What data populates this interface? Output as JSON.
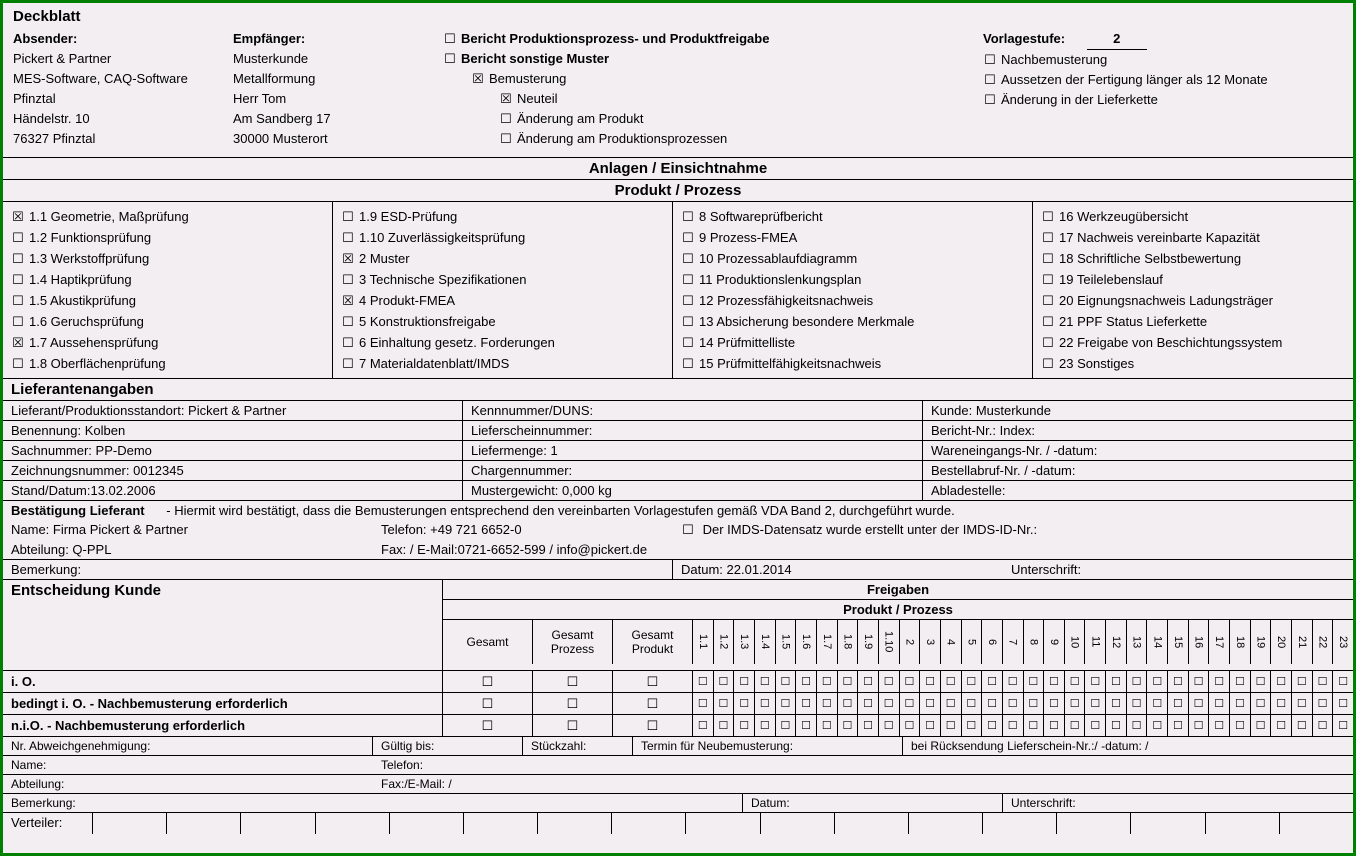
{
  "title": "Deckblatt",
  "absender_label": "Absender:",
  "absender": [
    "Pickert & Partner",
    "MES-Software, CAQ-Software",
    "Pfinztal",
    "Händelstr. 10",
    "76327 Pfinztal"
  ],
  "empfaenger_label": "Empfänger:",
  "empfaenger": [
    "Musterkunde",
    "Metallformung",
    "Herr Tom",
    "Am Sandberg 17",
    "30000 Musterort"
  ],
  "mid": [
    {
      "c": "☐",
      "t": "Bericht Produktionsprozess- und Produktfreigabe",
      "b": true,
      "ind": 0
    },
    {
      "c": "☐",
      "t": "Bericht sonstige Muster",
      "b": true,
      "ind": 0
    },
    {
      "c": "☒",
      "t": "Bemusterung",
      "b": false,
      "ind": 1
    },
    {
      "c": "☒",
      "t": "Neuteil",
      "b": false,
      "ind": 2
    },
    {
      "c": "☐",
      "t": "Änderung am Produkt",
      "b": false,
      "ind": 2
    },
    {
      "c": "☐",
      "t": "Änderung am Produktionsprozessen",
      "b": false,
      "ind": 2
    }
  ],
  "vorlagestufe_label": "Vorlagestufe:",
  "vorlagestufe_value": "2",
  "right": [
    {
      "c": "☐",
      "t": "Nachbemusterung"
    },
    {
      "c": "☐",
      "t": "Aussetzen der Fertigung länger als 12 Monate"
    },
    {
      "c": "☐",
      "t": "Änderung in der Lieferkette"
    }
  ],
  "anlagen_title": "Anlagen / Einsichtnahme",
  "produkt_title": "Produkt / Prozess",
  "pp_col1": [
    {
      "c": "☒",
      "t": "1.1 Geometrie, Maßprüfung"
    },
    {
      "c": "☐",
      "t": "1.2 Funktionsprüfung"
    },
    {
      "c": "☐",
      "t": "1.3 Werkstoffprüfung"
    },
    {
      "c": "☐",
      "t": "1.4 Haptikprüfung"
    },
    {
      "c": "☐",
      "t": "1.5 Akustikprüfung"
    },
    {
      "c": "☐",
      "t": "1.6 Geruchsprüfung"
    },
    {
      "c": "☒",
      "t": "1.7 Aussehensprüfung"
    },
    {
      "c": "☐",
      "t": "1.8 Oberflächenprüfung"
    }
  ],
  "pp_col2": [
    {
      "c": "☐",
      "t": "1.9 ESD-Prüfung"
    },
    {
      "c": "☐",
      "t": "1.10 Zuverlässigkeitsprüfung"
    },
    {
      "c": "☒",
      "t": "2 Muster"
    },
    {
      "c": "☐",
      "t": "3 Technische Spezifikationen"
    },
    {
      "c": "☒",
      "t": "4 Produkt-FMEA"
    },
    {
      "c": "☐",
      "t": "5 Konstruktionsfreigabe"
    },
    {
      "c": "☐",
      "t": "6 Einhaltung gesetz. Forderungen"
    },
    {
      "c": "☐",
      "t": "7 Materialdatenblatt/IMDS"
    }
  ],
  "pp_col3": [
    {
      "c": "☐",
      "t": "8 Softwareprüfbericht"
    },
    {
      "c": "☐",
      "t": "9 Prozess-FMEA"
    },
    {
      "c": "☐",
      "t": "10 Prozessablaufdiagramm"
    },
    {
      "c": "☐",
      "t": "11 Produktionslenkungsplan"
    },
    {
      "c": "☐",
      "t": "12 Prozessfähigkeitsnachweis"
    },
    {
      "c": "☐",
      "t": "13 Absicherung besondere Merkmale"
    },
    {
      "c": "☐",
      "t": "14 Prüfmittelliste"
    },
    {
      "c": "☐",
      "t": "15 Prüfmittelfähigkeitsnachweis"
    }
  ],
  "pp_col4": [
    {
      "c": "☐",
      "t": "16 Werkzeugübersicht"
    },
    {
      "c": "☐",
      "t": "17 Nachweis vereinbarte Kapazität"
    },
    {
      "c": "☐",
      "t": "18 Schriftliche Selbstbewertung"
    },
    {
      "c": "☐",
      "t": "19 Teilelebenslauf"
    },
    {
      "c": "☐",
      "t": "20 Eignungsnachweis Ladungsträger"
    },
    {
      "c": "☐",
      "t": "21 PPF Status Lieferkette"
    },
    {
      "c": "☐",
      "t": "22 Freigabe von Beschichtungssystem"
    },
    {
      "c": "☐",
      "t": "23 Sonstiges"
    }
  ],
  "sup_title": "Lieferantenangaben",
  "sup_rows": [
    [
      "Lieferant/Produktionsstandort: Pickert & Partner",
      "Kennnummer/DUNS:",
      "Kunde: Musterkunde"
    ],
    [
      "Benennung: Kolben",
      "Lieferscheinnummer:",
      "Bericht-Nr.:                                      Index:"
    ],
    [
      "Sachnummer: PP-Demo",
      "Liefermenge: 1",
      "Wareneingangs-Nr. / -datum:"
    ],
    [
      "Zeichnungsnummer: 0012345",
      "Chargennummer:",
      "Bestellabruf-Nr. / -datum:"
    ],
    [
      "Stand/Datum:13.02.2006",
      "Mustergewicht: 0,000  kg",
      "Abladestelle:"
    ]
  ],
  "conf_title": "Bestätigung Lieferant",
  "conf_note": "- Hiermit wird bestätigt, dass die Bemusterungen entsprechend den vereinbarten Vorlagestufen gemäß VDA Band 2, durchgeführt wurde.",
  "conf_r1a": "Name: Firma Pickert & Partner",
  "conf_r1b": "Telefon: +49 721 6652-0",
  "conf_r1c_check": "☐",
  "conf_r1c": "Der IMDS-Datensatz wurde erstellt unter der IMDS-ID-Nr.:",
  "conf_r2a": "Abteilung: Q-PPL",
  "conf_r2b": "Fax: / E-Mail:0721-6652-599 / info@pickert.de",
  "bemerkung1_label": "Bemerkung:",
  "bemerkung1_datum": "Datum: 22.01.2014",
  "bemerkung1_sig": "Unterschrift:",
  "entsch_title": "Entscheidung Kunde",
  "freigaben_title": "Freigaben",
  "pp_sub": "Produkt / Prozess",
  "gesamt": "Gesamt",
  "gesamt_prozess": "Gesamt Prozess",
  "gesamt_produkt": "Gesamt Produkt",
  "fg_nums": [
    "1.1",
    "1.2",
    "1.3",
    "1.4",
    "1.5",
    "1.6",
    "1.7",
    "1.8",
    "1.9",
    "1.10",
    "2",
    "3",
    "4",
    "5",
    "6",
    "7",
    "8",
    "9",
    "10",
    "11",
    "12",
    "13",
    "14",
    "15",
    "16",
    "17",
    "18",
    "19",
    "20",
    "21",
    "22",
    "23"
  ],
  "fg_rows": [
    "i. O.",
    "bedingt i. O. - Nachbemusterung erforderlich",
    "n.i.O.  - Nachbemusterung erforderlich"
  ],
  "box": "☐",
  "abw_label": "Nr. Abweichgenehmigung:",
  "gueltig": "Gültig bis:",
  "stueck": "Stückzahl:",
  "termin": "Termin für Neubemusterung:",
  "rueck": "bei Rücksendung Lieferschein-Nr.:/ -datum: /",
  "bot_name": "Name:",
  "bot_tel": "Telefon:",
  "bot_abt": "Abteilung:",
  "bot_fax": "Fax:/E-Mail:   /",
  "bemerkung2": "Bemerkung:",
  "datum2": "Datum:",
  "sig2": "Unterschrift:",
  "verteiler": "Verteiler:"
}
